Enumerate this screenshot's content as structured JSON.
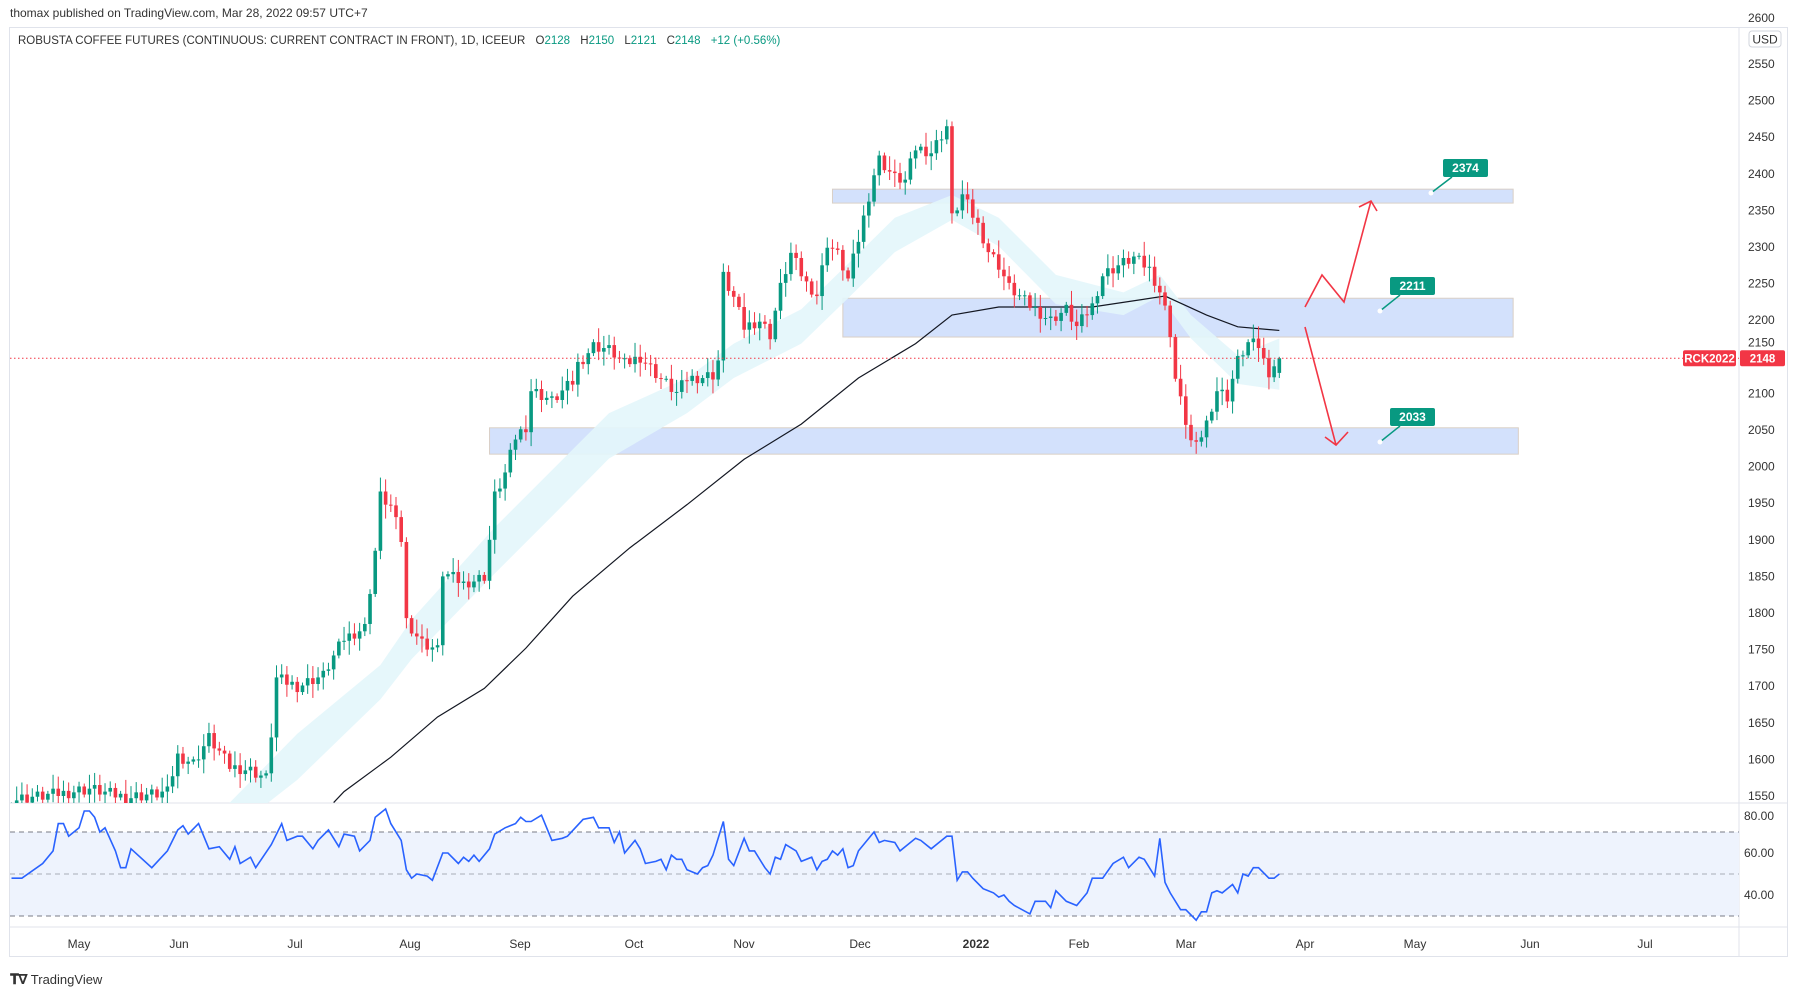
{
  "header": {
    "published": "thomax published on TradingView.com, Mar 28, 2022 09:57 UTC+7"
  },
  "symbol": {
    "name": "ROBUSTA COFFEE FUTURES (CONTINUOUS: CURRENT CONTRACT IN FRONT), 1D, ICEEUR",
    "o_label": "O",
    "o": "2128",
    "h_label": "H",
    "h": "2150",
    "l_label": "L",
    "l": "2121",
    "c_label": "C",
    "c": "2148",
    "change": "+12 (+0.56%)"
  },
  "price_axis": {
    "currency": "USD",
    "ticks": [
      "2600",
      "2550",
      "2500",
      "2450",
      "2400",
      "2350",
      "2300",
      "2250",
      "2200",
      "2150",
      "2100",
      "2050",
      "2000",
      "1950",
      "1900",
      "1850",
      "1800",
      "1750",
      "1700",
      "1650",
      "1600",
      "1550"
    ],
    "last_price_ticker": "RCK2022",
    "last_price": "2148"
  },
  "rsi_axis": {
    "ticks": [
      "80.00",
      "60.00",
      "40.00"
    ]
  },
  "time_axis": {
    "labels": [
      "May",
      "Jun",
      "Jul",
      "Aug",
      "Sep",
      "Oct",
      "Nov",
      "Dec",
      "2022",
      "Feb",
      "Mar",
      "Apr",
      "May",
      "Jun",
      "Jul"
    ]
  },
  "colors": {
    "up": "#089981",
    "down": "#f23645",
    "zone": "#d1dffc",
    "ma": "#131722",
    "ribbon": "#e3f6fb",
    "rsi": "#2962ff",
    "label": "#089981",
    "arrow": "#f23645"
  },
  "zones": [
    {
      "label": "2374",
      "top": 2379,
      "bottom": 2360,
      "start_bar": 158,
      "end_bar": 289
    },
    {
      "label": "2211",
      "top": 2230,
      "bottom": 2177,
      "start_bar": 160,
      "end_bar": 289
    },
    {
      "label": "2033",
      "top": 2053,
      "bottom": 2017,
      "start_bar": 92,
      "end_bar": 290
    }
  ],
  "logo": {
    "text": "TradingView"
  },
  "chart_data": {
    "type": "candlestick",
    "title": "ROBUSTA COFFEE FUTURES, 1D, ICEEUR",
    "ylim": [
      1550,
      2600
    ],
    "price_scale": "USD",
    "close_keypoints": [
      [
        0,
        1545
      ],
      [
        8,
        1552
      ],
      [
        15,
        1560
      ],
      [
        22,
        1548
      ],
      [
        30,
        1555
      ],
      [
        32,
        1605
      ],
      [
        35,
        1595
      ],
      [
        38,
        1630
      ],
      [
        42,
        1590
      ],
      [
        46,
        1585
      ],
      [
        49,
        1575
      ],
      [
        50,
        1635
      ],
      [
        51,
        1710
      ],
      [
        55,
        1700
      ],
      [
        60,
        1715
      ],
      [
        64,
        1765
      ],
      [
        68,
        1780
      ],
      [
        70,
        1885
      ],
      [
        71,
        1960
      ],
      [
        73,
        1945
      ],
      [
        75,
        1900
      ],
      [
        76,
        1790
      ],
      [
        79,
        1760
      ],
      [
        82,
        1750
      ],
      [
        83,
        1855
      ],
      [
        87,
        1840
      ],
      [
        91,
        1850
      ],
      [
        92,
        1900
      ],
      [
        93,
        1960
      ],
      [
        95,
        1990
      ],
      [
        97,
        2040
      ],
      [
        99,
        2055
      ],
      [
        100,
        2105
      ],
      [
        104,
        2090
      ],
      [
        108,
        2115
      ],
      [
        109,
        2140
      ],
      [
        112,
        2165
      ],
      [
        115,
        2160
      ],
      [
        118,
        2140
      ],
      [
        121,
        2150
      ],
      [
        125,
        2120
      ],
      [
        128,
        2100
      ],
      [
        130,
        2120
      ],
      [
        135,
        2125
      ],
      [
        136,
        2145
      ],
      [
        137,
        2260
      ],
      [
        139,
        2230
      ],
      [
        141,
        2190
      ],
      [
        144,
        2200
      ],
      [
        146,
        2180
      ],
      [
        148,
        2245
      ],
      [
        150,
        2290
      ],
      [
        153,
        2250
      ],
      [
        155,
        2235
      ],
      [
        157,
        2305
      ],
      [
        159,
        2290
      ],
      [
        161,
        2255
      ],
      [
        163,
        2310
      ],
      [
        166,
        2400
      ],
      [
        167,
        2420
      ],
      [
        170,
        2395
      ],
      [
        172,
        2390
      ],
      [
        174,
        2435
      ],
      [
        177,
        2430
      ],
      [
        180,
        2465
      ],
      [
        181,
        2340
      ],
      [
        183,
        2370
      ],
      [
        186,
        2330
      ],
      [
        188,
        2295
      ],
      [
        190,
        2275
      ],
      [
        192,
        2245
      ],
      [
        196,
        2220
      ],
      [
        200,
        2200
      ],
      [
        203,
        2215
      ],
      [
        205,
        2190
      ],
      [
        208,
        2220
      ],
      [
        210,
        2262
      ],
      [
        213,
        2275
      ],
      [
        216,
        2285
      ],
      [
        219,
        2270
      ],
      [
        220,
        2255
      ],
      [
        221,
        2240
      ],
      [
        222,
        2215
      ],
      [
        223,
        2183
      ],
      [
        224,
        2120
      ],
      [
        225,
        2090
      ],
      [
        227,
        2034
      ],
      [
        228,
        2026
      ],
      [
        230,
        2060
      ],
      [
        232,
        2105
      ],
      [
        234,
        2095
      ],
      [
        236,
        2145
      ],
      [
        238,
        2168
      ],
      [
        240,
        2165
      ],
      [
        241,
        2145
      ],
      [
        242,
        2130
      ],
      [
        244,
        2148
      ]
    ],
    "ma_keypoints": [
      [
        62,
        1541
      ],
      [
        64,
        1556
      ],
      [
        73,
        1603
      ],
      [
        82,
        1658
      ],
      [
        91,
        1697
      ],
      [
        99,
        1752
      ],
      [
        108,
        1823
      ],
      [
        119,
        1889
      ],
      [
        130,
        1948
      ],
      [
        141,
        2010
      ],
      [
        152,
        2058
      ],
      [
        163,
        2121
      ],
      [
        174,
        2168
      ],
      [
        181,
        2207
      ],
      [
        190,
        2218
      ],
      [
        208,
        2218
      ],
      [
        222,
        2233
      ],
      [
        230,
        2207
      ],
      [
        236,
        2191
      ],
      [
        244,
        2186
      ]
    ],
    "ribbon_keypoints": [
      [
        42,
        1541,
        1500
      ],
      [
        55,
        1635,
        1572
      ],
      [
        71,
        1729,
        1682
      ],
      [
        77,
        1791,
        1737
      ],
      [
        93,
        1917,
        1854
      ],
      [
        104,
        1995,
        1932
      ],
      [
        115,
        2073,
        2011
      ],
      [
        130,
        2121,
        2073
      ],
      [
        139,
        2168,
        2121
      ],
      [
        152,
        2215,
        2168
      ],
      [
        161,
        2277,
        2230
      ],
      [
        170,
        2340,
        2293
      ],
      [
        181,
        2371,
        2337
      ],
      [
        190,
        2340,
        2301
      ],
      [
        201,
        2262,
        2222
      ],
      [
        214,
        2238,
        2207
      ],
      [
        221,
        2262,
        2233
      ],
      [
        227,
        2207,
        2175
      ],
      [
        236,
        2152,
        2113
      ],
      [
        244,
        2175,
        2105
      ]
    ],
    "rsi": {
      "levels": [
        70,
        50,
        30
      ],
      "ylim": [
        20,
        85
      ],
      "keypoints": [
        [
          0,
          48
        ],
        [
          2,
          48
        ],
        [
          6,
          55
        ],
        [
          8,
          61
        ],
        [
          9,
          74
        ],
        [
          10,
          74
        ],
        [
          11,
          68
        ],
        [
          13,
          72
        ],
        [
          14,
          80
        ],
        [
          15,
          80
        ],
        [
          16,
          77
        ],
        [
          17,
          70
        ],
        [
          18,
          72
        ],
        [
          20,
          61
        ],
        [
          21,
          53
        ],
        [
          22,
          53
        ],
        [
          23,
          62
        ],
        [
          27,
          53
        ],
        [
          30,
          61
        ],
        [
          32,
          71
        ],
        [
          33,
          73
        ],
        [
          34,
          69
        ],
        [
          36,
          74
        ],
        [
          38,
          62
        ],
        [
          40,
          63
        ],
        [
          42,
          57
        ],
        [
          43,
          63
        ],
        [
          44,
          55
        ],
        [
          46,
          58
        ],
        [
          47,
          53
        ],
        [
          50,
          64
        ],
        [
          52,
          74
        ],
        [
          53,
          66
        ],
        [
          55,
          68
        ],
        [
          56,
          68
        ],
        [
          58,
          62
        ],
        [
          59,
          66
        ],
        [
          61,
          71
        ],
        [
          63,
          63
        ],
        [
          64,
          69
        ],
        [
          66,
          68
        ],
        [
          67,
          61
        ],
        [
          69,
          66
        ],
        [
          70,
          77
        ],
        [
          72,
          81
        ],
        [
          73,
          74
        ],
        [
          75,
          66
        ],
        [
          76,
          52
        ],
        [
          77,
          48
        ],
        [
          78,
          50
        ],
        [
          80,
          49
        ],
        [
          81,
          47
        ],
        [
          83,
          60
        ],
        [
          84,
          60
        ],
        [
          86,
          55
        ],
        [
          87,
          58
        ],
        [
          88,
          56
        ],
        [
          89,
          59
        ],
        [
          90,
          56
        ],
        [
          92,
          62
        ],
        [
          93,
          69
        ],
        [
          95,
          72
        ],
        [
          97,
          74
        ],
        [
          98,
          77
        ],
        [
          99,
          75
        ],
        [
          100,
          75
        ],
        [
          102,
          78
        ],
        [
          104,
          66
        ],
        [
          106,
          67
        ],
        [
          107,
          68
        ],
        [
          110,
          76
        ],
        [
          112,
          77
        ],
        [
          113,
          72
        ],
        [
          115,
          72
        ],
        [
          116,
          65
        ],
        [
          117,
          70
        ],
        [
          118,
          60
        ],
        [
          120,
          66
        ],
        [
          121,
          62
        ],
        [
          122,
          55
        ],
        [
          124,
          56
        ],
        [
          125,
          57
        ],
        [
          126,
          52
        ],
        [
          127,
          59
        ],
        [
          128,
          57
        ],
        [
          129,
          57
        ],
        [
          130,
          52
        ],
        [
          132,
          50
        ],
        [
          133,
          53
        ],
        [
          134,
          54
        ],
        [
          135,
          59
        ],
        [
          137,
          75
        ],
        [
          138,
          57
        ],
        [
          139,
          54
        ],
        [
          141,
          67
        ],
        [
          142,
          61
        ],
        [
          143,
          61
        ],
        [
          145,
          53
        ],
        [
          146,
          50
        ],
        [
          147,
          58
        ],
        [
          148,
          57
        ],
        [
          149,
          64
        ],
        [
          151,
          61
        ],
        [
          152,
          56
        ],
        [
          154,
          58
        ],
        [
          155,
          52
        ],
        [
          156,
          56
        ],
        [
          157,
          57
        ],
        [
          158,
          61
        ],
        [
          159,
          59
        ],
        [
          160,
          62
        ],
        [
          161,
          53
        ],
        [
          162,
          54
        ],
        [
          163,
          61
        ],
        [
          165,
          67
        ],
        [
          166,
          70
        ],
        [
          167,
          65
        ],
        [
          168,
          66
        ],
        [
          170,
          65
        ],
        [
          171,
          61
        ],
        [
          174,
          67
        ],
        [
          175,
          66
        ],
        [
          177,
          62
        ],
        [
          179,
          66
        ],
        [
          180,
          68
        ],
        [
          181,
          68
        ],
        [
          182,
          47
        ],
        [
          183,
          51
        ],
        [
          184,
          51
        ],
        [
          185,
          48
        ],
        [
          187,
          43
        ],
        [
          189,
          41
        ],
        [
          190,
          39
        ],
        [
          191,
          40
        ],
        [
          192,
          37
        ],
        [
          193,
          35
        ],
        [
          196,
          31
        ],
        [
          197,
          37
        ],
        [
          199,
          37
        ],
        [
          200,
          34
        ],
        [
          201,
          42
        ],
        [
          203,
          37
        ],
        [
          205,
          35
        ],
        [
          207,
          41
        ],
        [
          208,
          48
        ],
        [
          210,
          48
        ],
        [
          212,
          55
        ],
        [
          214,
          58
        ],
        [
          215,
          53
        ],
        [
          217,
          58
        ],
        [
          218,
          57
        ],
        [
          220,
          49
        ],
        [
          221,
          67
        ],
        [
          222,
          46
        ],
        [
          223,
          41
        ],
        [
          225,
          33
        ],
        [
          226,
          33
        ],
        [
          228,
          28
        ],
        [
          229,
          32
        ],
        [
          230,
          32
        ],
        [
          231,
          41
        ],
        [
          232,
          42
        ],
        [
          233,
          41
        ],
        [
          235,
          45
        ],
        [
          236,
          41
        ],
        [
          237,
          50
        ],
        [
          238,
          49
        ],
        [
          239,
          53
        ],
        [
          240,
          53
        ],
        [
          242,
          48
        ],
        [
          243,
          48
        ],
        [
          244,
          50
        ]
      ]
    },
    "last": {
      "open": 2128,
      "high": 2150,
      "low": 2121,
      "close": 2148,
      "change": 12,
      "change_pct": 0.56
    }
  }
}
